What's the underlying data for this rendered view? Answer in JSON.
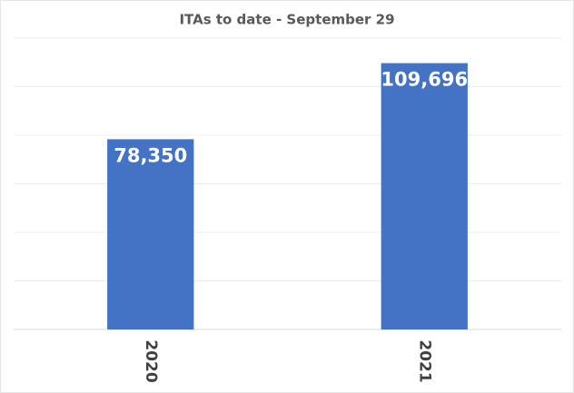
{
  "chart_data": {
    "type": "bar",
    "title": "ITAs to date - September 29",
    "categories": [
      "2020",
      "2021"
    ],
    "values": [
      78350,
      109696
    ],
    "value_labels": [
      "78,350",
      "109,696"
    ],
    "color": "#4472c4",
    "ylim": [
      0,
      120000
    ],
    "yticks": [
      0,
      20000,
      40000,
      60000,
      80000,
      100000,
      120000
    ],
    "grid": true
  }
}
